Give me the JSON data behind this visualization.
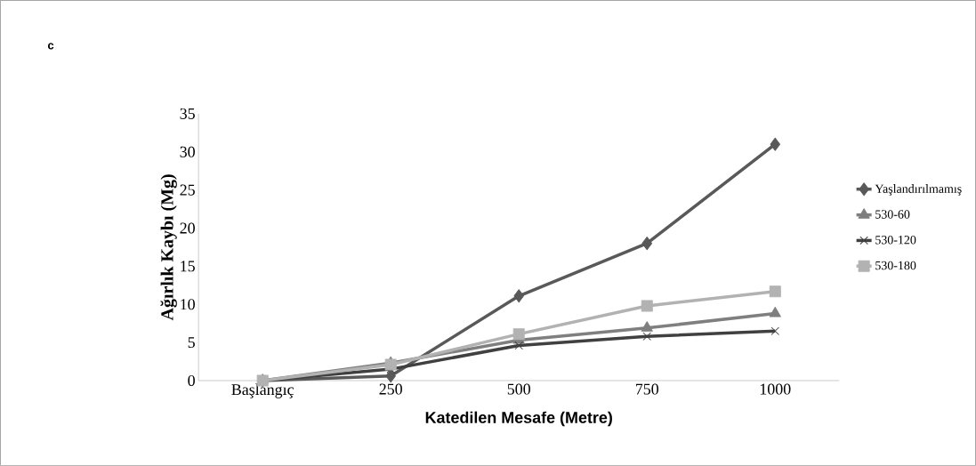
{
  "chart_data": {
    "type": "line",
    "title": "c",
    "xlabel": "Katedilen Mesafe (Metre)",
    "ylabel": "Ağırlık Kaybı (Mg)",
    "categories": [
      "Başlangıç",
      "250",
      "500",
      "750",
      "1000"
    ],
    "series": [
      {
        "name": "Yaşlandırılmamış",
        "color": "#595959",
        "marker": "diamond",
        "values": [
          0,
          0.6,
          11.1,
          18,
          31
        ]
      },
      {
        "name": "530-60",
        "color": "#7f7f7f",
        "marker": "triangle",
        "values": [
          0,
          2.3,
          5.3,
          6.9,
          8.8
        ]
      },
      {
        "name": "530-120",
        "color": "#404040",
        "marker": "cross",
        "values": [
          0,
          1.5,
          4.6,
          5.8,
          6.5
        ]
      },
      {
        "name": "530-180",
        "color": "#b2b2b2",
        "marker": "square",
        "values": [
          0,
          2.1,
          6.1,
          9.8,
          11.7
        ]
      }
    ],
    "ylim": [
      0,
      35
    ],
    "yticks": [
      0,
      5,
      10,
      15,
      20,
      25,
      30,
      35
    ],
    "grid": false,
    "legend": "right"
  }
}
